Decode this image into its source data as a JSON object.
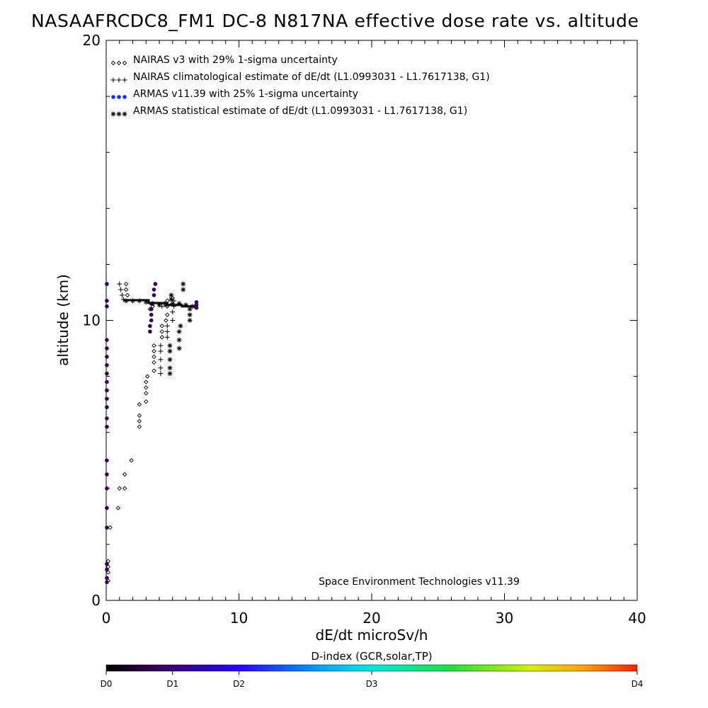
{
  "chart_data": {
    "type": "scatter",
    "title": "NASAAFRCDC8_FM1 DC-8   N817NA effective dose rate vs. altitude",
    "xlabel": "dE/dt microSv/h",
    "ylabel": "altitude (km)",
    "xlim": [
      0,
      40
    ],
    "ylim": [
      0,
      20
    ],
    "x_ticks": [
      0,
      10,
      20,
      30,
      40
    ],
    "y_ticks": [
      0,
      10,
      20
    ],
    "grid": false,
    "legend_position": "top-left",
    "legend": [
      {
        "symbol": "◇◇◇",
        "label": "NAIRAS v3 with 29% 1-sigma uncertainty"
      },
      {
        "symbol": "+++",
        "label": "NAIRAS climatological estimate of dE/dt (L1.0993031 - L1.7617138, G1)"
      },
      {
        "symbol": "●●●",
        "label": "ARMAS v11.39 with 25% 1-sigma uncertainty"
      },
      {
        "symbol": "✱✱✱",
        "label": "ARMAS statistical estimate of dE/dt (L1.0993031 - L1.7617138, G1)"
      }
    ],
    "annotation": "Space Environment Technologies v11.39",
    "colorbar": {
      "title": "D-index (GCR,solar,TP)",
      "labels": [
        {
          "text": "D0",
          "pos": 0.0
        },
        {
          "text": "D1",
          "pos": 0.125
        },
        {
          "text": "D2",
          "pos": 0.25
        },
        {
          "text": "D3",
          "pos": 0.5
        },
        {
          "text": "D4",
          "pos": 1.0
        }
      ],
      "stops": [
        {
          "pos": 0.0,
          "color": "#000000"
        },
        {
          "pos": 0.1,
          "color": "#3a0060"
        },
        {
          "pos": 0.25,
          "color": "#2a00ff"
        },
        {
          "pos": 0.4,
          "color": "#00a0ff"
        },
        {
          "pos": 0.5,
          "color": "#00e8e0"
        },
        {
          "pos": 0.65,
          "color": "#20e040"
        },
        {
          "pos": 0.8,
          "color": "#d8f000"
        },
        {
          "pos": 0.9,
          "color": "#ffa000"
        },
        {
          "pos": 1.0,
          "color": "#ff2000"
        }
      ]
    },
    "series": [
      {
        "name": "NAIRAS v3 with 29% 1-sigma uncertainty",
        "marker": "diamond",
        "color": "#000000",
        "points": [
          [
            0.15,
            0.7
          ],
          [
            0.15,
            1.0
          ],
          [
            0.15,
            1.2
          ],
          [
            0.15,
            1.4
          ],
          [
            0.3,
            2.6
          ],
          [
            0.9,
            3.3
          ],
          [
            1.4,
            4.0
          ],
          [
            1.0,
            4.0
          ],
          [
            1.4,
            4.5
          ],
          [
            1.9,
            5.0
          ],
          [
            2.5,
            6.2
          ],
          [
            2.5,
            6.4
          ],
          [
            2.5,
            6.6
          ],
          [
            2.5,
            7.0
          ],
          [
            3.0,
            7.1
          ],
          [
            3.0,
            7.4
          ],
          [
            3.0,
            7.6
          ],
          [
            3.0,
            7.8
          ],
          [
            3.1,
            8.0
          ],
          [
            3.6,
            8.2
          ],
          [
            3.6,
            8.5
          ],
          [
            3.6,
            8.7
          ],
          [
            3.6,
            8.9
          ],
          [
            3.6,
            9.1
          ],
          [
            4.2,
            9.4
          ],
          [
            4.2,
            9.6
          ],
          [
            4.2,
            9.8
          ],
          [
            4.5,
            10.0
          ],
          [
            4.6,
            10.2
          ],
          [
            4.6,
            10.5
          ],
          [
            4.6,
            10.7
          ],
          [
            5.0,
            10.8
          ],
          [
            1.5,
            11.3
          ],
          [
            1.5,
            11.1
          ],
          [
            1.6,
            10.9
          ],
          [
            3.5,
            10.5
          ],
          [
            3.3,
            10.4
          ],
          [
            4.4,
            10.6
          ]
        ]
      },
      {
        "name": "NAIRAS climatological estimate of dE/dt (L1.0993031 - L1.7617138, G1)",
        "marker": "plus",
        "color": "#000000",
        "points": [
          [
            1.0,
            11.3
          ],
          [
            1.1,
            11.1
          ],
          [
            1.2,
            10.9
          ],
          [
            1.3,
            10.75
          ],
          [
            4.1,
            8.1
          ],
          [
            4.1,
            8.3
          ],
          [
            4.1,
            8.6
          ],
          [
            4.1,
            8.9
          ],
          [
            4.1,
            9.1
          ],
          [
            4.6,
            9.4
          ],
          [
            4.6,
            9.6
          ],
          [
            4.6,
            9.8
          ],
          [
            5.0,
            10.0
          ],
          [
            5.0,
            10.3
          ],
          [
            5.1,
            10.5
          ],
          [
            5.1,
            10.7
          ],
          [
            4.2,
            10.5
          ]
        ]
      },
      {
        "name": "ARMAS v11.39 with 25% 1-sigma uncertainty",
        "marker": "dot",
        "color": "#3a0050",
        "points": [
          [
            0.05,
            0.65
          ],
          [
            0.05,
            0.8
          ],
          [
            0.05,
            1.1
          ],
          [
            0.05,
            1.3
          ],
          [
            0.05,
            2.6
          ],
          [
            0.05,
            3.3
          ],
          [
            0.05,
            4.0
          ],
          [
            0.05,
            4.5
          ],
          [
            0.05,
            5.0
          ],
          [
            0.05,
            6.2
          ],
          [
            0.05,
            6.5
          ],
          [
            0.05,
            6.9
          ],
          [
            0.05,
            7.2
          ],
          [
            0.05,
            7.5
          ],
          [
            0.05,
            7.8
          ],
          [
            0.05,
            8.1
          ],
          [
            0.05,
            8.4
          ],
          [
            0.05,
            8.7
          ],
          [
            0.05,
            9.0
          ],
          [
            0.05,
            9.3
          ],
          [
            0.05,
            10.5
          ],
          [
            0.05,
            10.7
          ],
          [
            0.05,
            11.3
          ],
          [
            3.3,
            9.6
          ],
          [
            3.3,
            9.8
          ],
          [
            3.4,
            10.0
          ],
          [
            3.4,
            10.2
          ],
          [
            3.4,
            10.4
          ],
          [
            3.4,
            10.6
          ],
          [
            3.6,
            10.9
          ],
          [
            3.6,
            11.1
          ],
          [
            3.7,
            11.3
          ],
          [
            6.8,
            10.45
          ],
          [
            6.8,
            10.55
          ],
          [
            6.8,
            10.65
          ]
        ]
      },
      {
        "name": "ARMAS statistical estimate of dE/dt (L1.0993031 - L1.7617138, G1)",
        "marker": "asterisk",
        "color": "#000000",
        "points": [
          [
            1.5,
            10.7
          ],
          [
            2.0,
            10.7
          ],
          [
            2.5,
            10.7
          ],
          [
            3.0,
            10.65
          ],
          [
            3.5,
            10.6
          ],
          [
            4.0,
            10.55
          ],
          [
            4.5,
            10.55
          ],
          [
            5.0,
            10.6
          ],
          [
            5.5,
            10.6
          ],
          [
            6.0,
            10.55
          ],
          [
            6.5,
            10.5
          ],
          [
            4.9,
            10.9
          ],
          [
            4.9,
            10.75
          ],
          [
            4.8,
            8.1
          ],
          [
            4.8,
            8.3
          ],
          [
            4.8,
            8.6
          ],
          [
            4.8,
            8.9
          ],
          [
            4.8,
            9.1
          ],
          [
            5.5,
            9.0
          ],
          [
            5.5,
            9.3
          ],
          [
            5.5,
            9.6
          ],
          [
            5.6,
            9.8
          ],
          [
            6.3,
            10.0
          ],
          [
            6.3,
            10.2
          ],
          [
            6.3,
            10.4
          ],
          [
            5.8,
            11.1
          ],
          [
            5.8,
            11.3
          ]
        ]
      }
    ]
  }
}
